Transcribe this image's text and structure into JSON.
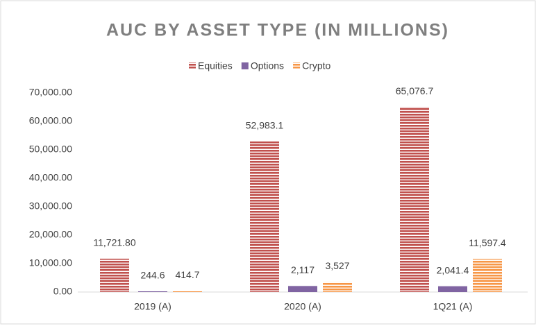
{
  "chart_data": {
    "type": "bar",
    "title": "AUC BY ASSET TYPE (IN MILLIONS)",
    "categories": [
      "2019 (A)",
      "2020 (A)",
      "1Q21 (A)"
    ],
    "series": [
      {
        "name": "Equities",
        "color": "#c0504d",
        "values": [
          11721.8,
          52983.1,
          65076.7
        ],
        "value_labels": [
          "11,721.80",
          "52,983.1",
          "65,076.7"
        ]
      },
      {
        "name": "Options",
        "color": "#8064a2",
        "values": [
          244.6,
          2117,
          2041.4
        ],
        "value_labels": [
          "244.6",
          "2,117",
          "2,041.4"
        ]
      },
      {
        "name": "Crypto",
        "color": "#f79646",
        "values": [
          414.7,
          3527,
          11597.4
        ],
        "value_labels": [
          "414.7",
          "3,527",
          "11,597.4"
        ]
      }
    ],
    "ylim": [
      0,
      70000
    ],
    "yticks": [
      {
        "value": 0,
        "label": "0.00"
      },
      {
        "value": 10000,
        "label": "10,000.00"
      },
      {
        "value": 20000,
        "label": "20,000.00"
      },
      {
        "value": 30000,
        "label": "30,000.00"
      },
      {
        "value": 40000,
        "label": "40,000.00"
      },
      {
        "value": 50000,
        "label": "50,000.00"
      },
      {
        "value": 60000,
        "label": "60,000.00"
      },
      {
        "value": 70000,
        "label": "70,000.00"
      }
    ],
    "legend": "top",
    "grid": false
  }
}
